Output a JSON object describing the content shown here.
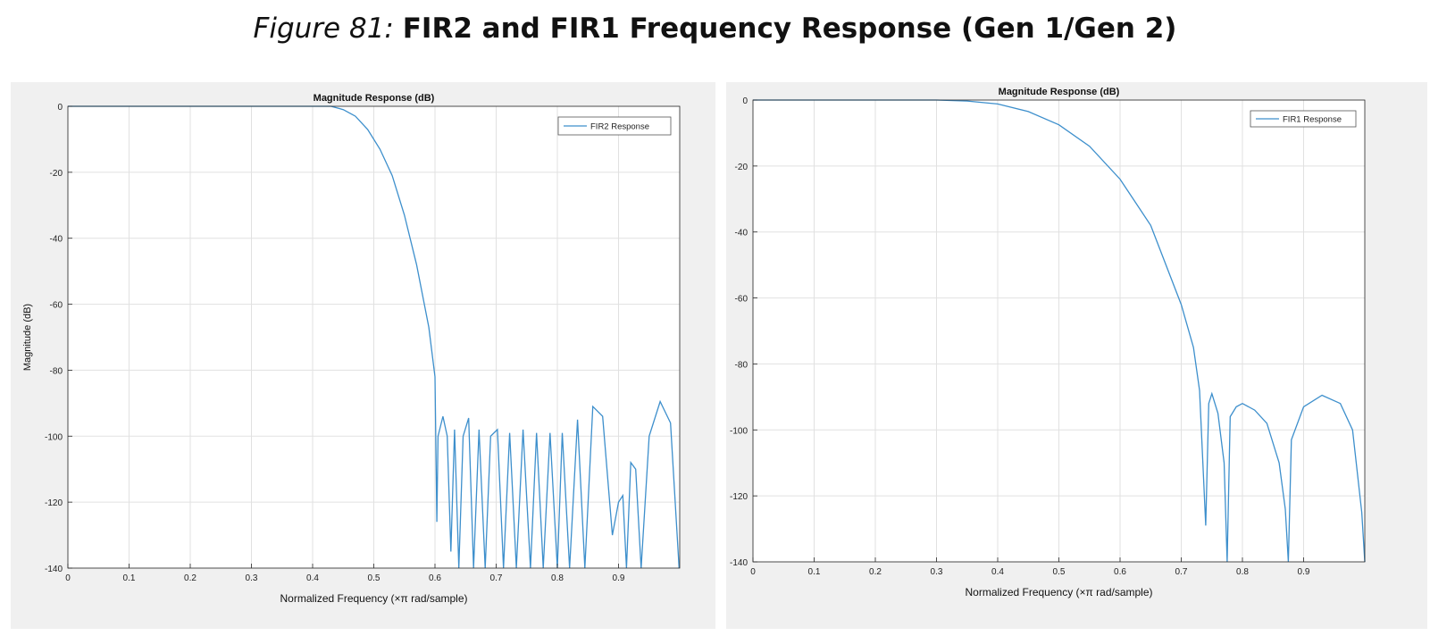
{
  "figure": {
    "number": "Figure 81:",
    "title": "FIR2 and FIR1 Frequency Response (Gen 1/Gen 2)"
  },
  "colors": {
    "line": "#3d8fcc",
    "grid": "#e1e1e1",
    "axis": "#262626",
    "panel_bg": "#f0f0f0"
  },
  "chart_data": [
    {
      "type": "line",
      "title": "Magnitude Response (dB)",
      "xlabel": "Normalized Frequency  (×π rad/sample)",
      "ylabel": "Magnitude (dB)",
      "xlim": [
        0,
        1
      ],
      "ylim": [
        -140,
        0
      ],
      "xticks": [
        0,
        0.1,
        0.2,
        0.3,
        0.4,
        0.5,
        0.6,
        0.7,
        0.8,
        0.9
      ],
      "xtick_labels": [
        "0",
        "0.1",
        "0.2",
        "0.3",
        "0.4",
        "0.5",
        "0.6",
        "0.7",
        "0.8",
        "0.9"
      ],
      "yticks": [
        0,
        -20,
        -40,
        -60,
        -80,
        -100,
        -120,
        -140
      ],
      "ytick_labels": [
        "0",
        "-20",
        "-40",
        "-60",
        "-80",
        "-100",
        "-120",
        "-140"
      ],
      "grid": true,
      "legend_position": "top-right",
      "series": [
        {
          "name": "FIR2 Response",
          "x": [
            0,
            0.1,
            0.2,
            0.3,
            0.4,
            0.43,
            0.45,
            0.47,
            0.49,
            0.51,
            0.53,
            0.55,
            0.57,
            0.59,
            0.6,
            0.603,
            0.605,
            0.613,
            0.62,
            0.626,
            0.632,
            0.639,
            0.646,
            0.655,
            0.663,
            0.672,
            0.682,
            0.691,
            0.702,
            0.712,
            0.722,
            0.733,
            0.744,
            0.756,
            0.766,
            0.777,
            0.788,
            0.8,
            0.808,
            0.82,
            0.833,
            0.845,
            0.858,
            0.874,
            0.89,
            0.9,
            0.907,
            0.913,
            0.92,
            0.928,
            0.937,
            0.95,
            0.968,
            0.985,
            0.999
          ],
          "y": [
            0,
            0,
            0,
            0,
            0,
            0,
            -1,
            -3,
            -7,
            -13,
            -21,
            -33,
            -48,
            -67,
            -82,
            -126,
            -100,
            -94,
            -100,
            -135,
            -98,
            -140,
            -100,
            -94.5,
            -140,
            -98,
            -140,
            -100,
            -98,
            -140,
            -99,
            -140,
            -98,
            -140,
            -99,
            -140,
            -99,
            -140,
            -99,
            -140,
            -95,
            -140,
            -91,
            -94,
            -130,
            -120,
            -118,
            -140,
            -108,
            -110,
            -140,
            -100,
            -89.5,
            -96,
            -140
          ]
        }
      ]
    },
    {
      "type": "line",
      "title": "Magnitude Response (dB)",
      "xlabel": "Normalized Frequency  (×π rad/sample)",
      "ylabel": "Magnitude (dB)",
      "xlim": [
        0,
        1
      ],
      "ylim": [
        -140,
        0
      ],
      "xticks": [
        0,
        0.1,
        0.2,
        0.3,
        0.4,
        0.5,
        0.6,
        0.7,
        0.8,
        0.9
      ],
      "xtick_labels": [
        "0",
        "0.1",
        "0.2",
        "0.3",
        "0.4",
        "0.5",
        "0.6",
        "0.7",
        "0.8",
        "0.9"
      ],
      "yticks": [
        0,
        -20,
        -40,
        -60,
        -80,
        -100,
        -120,
        -140
      ],
      "ytick_labels": [
        "0",
        "-20",
        "-40",
        "-60",
        "-80",
        "-100",
        "-120",
        "-140"
      ],
      "grid": true,
      "legend_position": "top-right",
      "series": [
        {
          "name": "FIR1 Response",
          "x": [
            0,
            0.1,
            0.2,
            0.3,
            0.35,
            0.4,
            0.45,
            0.5,
            0.55,
            0.6,
            0.65,
            0.7,
            0.72,
            0.73,
            0.74,
            0.745,
            0.75,
            0.76,
            0.77,
            0.775,
            0.78,
            0.79,
            0.8,
            0.82,
            0.84,
            0.86,
            0.87,
            0.875,
            0.88,
            0.9,
            0.93,
            0.96,
            0.98,
            0.995,
            1.0
          ],
          "y": [
            0,
            0,
            0,
            0,
            -0.3,
            -1.2,
            -3.5,
            -7.5,
            -14,
            -24,
            -38,
            -62,
            -75,
            -88,
            -129,
            -92,
            -89,
            -95,
            -110,
            -140,
            -96,
            -93,
            -92,
            -94,
            -98,
            -110,
            -124,
            -140,
            -103,
            -93,
            -89.5,
            -92,
            -100,
            -125,
            -140
          ]
        }
      ]
    }
  ]
}
